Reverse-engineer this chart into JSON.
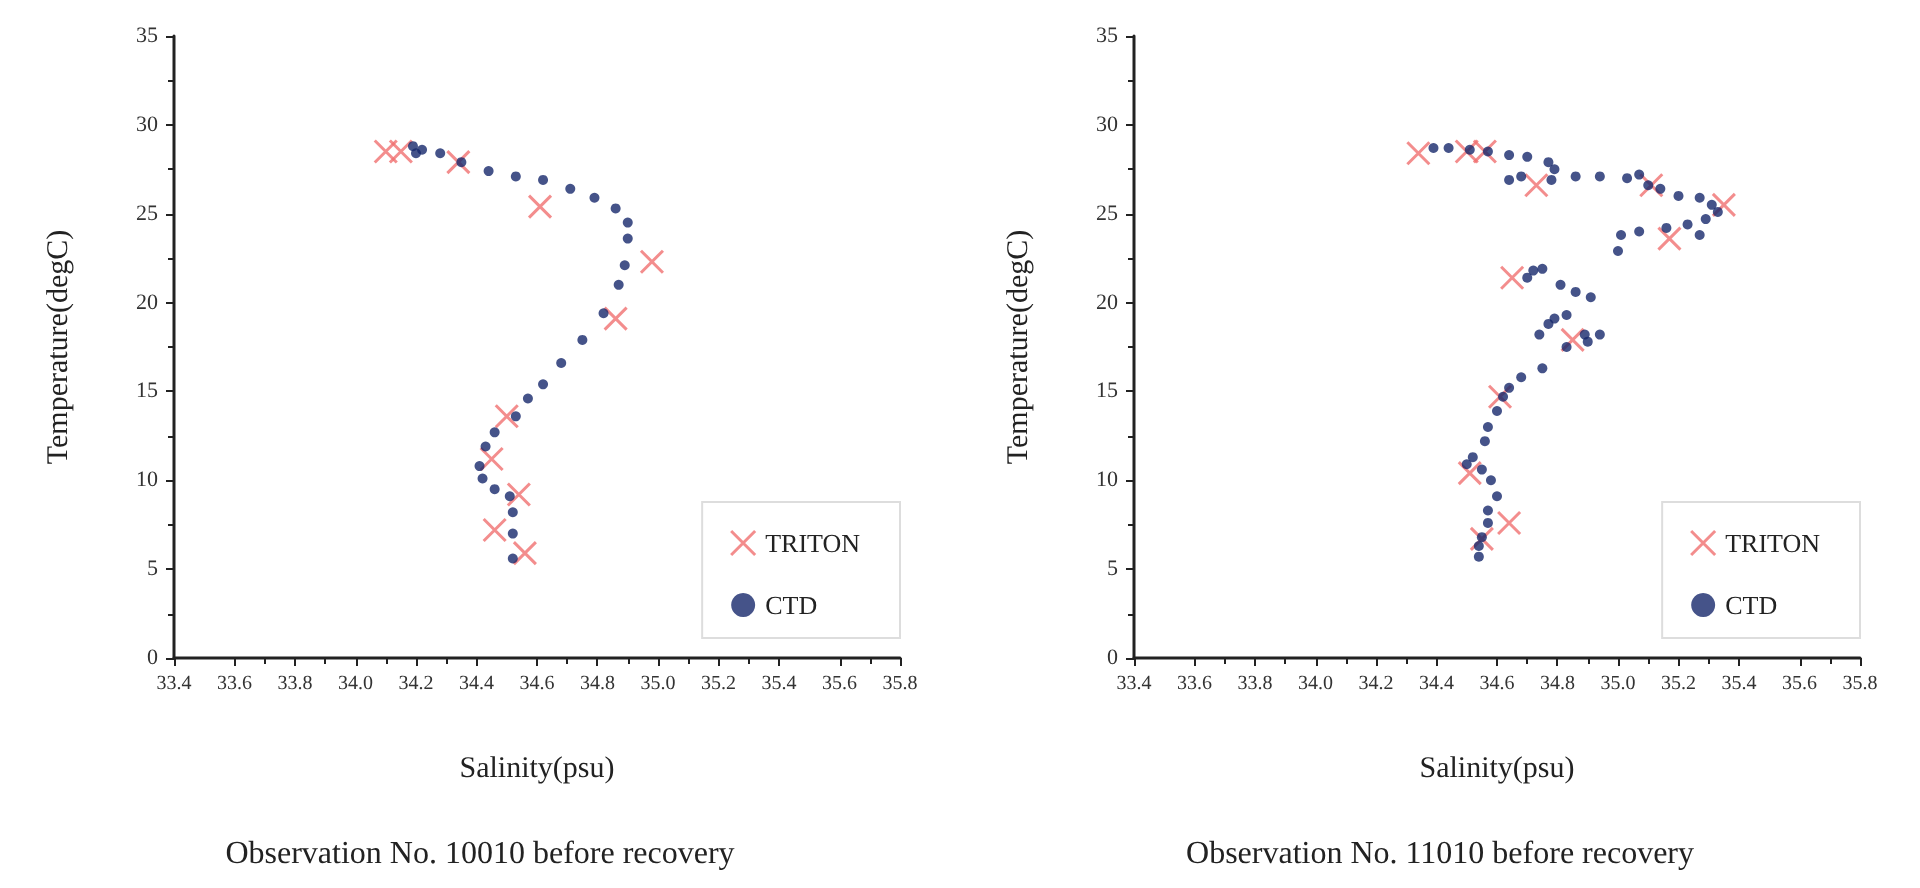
{
  "chart_data": [
    {
      "type": "scatter",
      "title": "Observation No. 10010 before recovery",
      "xlabel": "Salinity(psu)",
      "ylabel": "Temperature(degC)",
      "xlim": [
        33.4,
        35.8
      ],
      "xticks": [
        {
          "value": 33.4,
          "label": "33.4"
        },
        {
          "value": 33.6,
          "label": "33.6"
        },
        {
          "value": 33.8,
          "label": "33.8"
        },
        {
          "value": 34.0,
          "label": "34.0"
        },
        {
          "value": 34.2,
          "label": "34.2"
        },
        {
          "value": 34.4,
          "label": "34.4"
        },
        {
          "value": 34.6,
          "label": "34.6"
        },
        {
          "value": 34.8,
          "label": "34.8"
        },
        {
          "value": 35.0,
          "label": "35.0"
        },
        {
          "value": 35.2,
          "label": "35.2"
        },
        {
          "value": 35.4,
          "label": "35.4"
        },
        {
          "value": 35.6,
          "label": "35.6"
        },
        {
          "value": 35.8,
          "label": "35.8"
        }
      ],
      "ylim": [
        0,
        35
      ],
      "yticks": [
        0,
        5,
        10,
        15,
        20,
        25,
        30,
        35
      ],
      "grid": false,
      "legend": "bottom right",
      "series": [
        {
          "name": "TRITON",
          "color": "#f07070",
          "marker": "cross",
          "x": [
            34.1,
            34.15,
            34.34,
            34.61,
            34.98,
            34.86,
            34.5,
            34.45,
            34.54,
            34.46,
            34.56
          ],
          "values": [
            28.5,
            28.5,
            27.9,
            25.4,
            22.3,
            19.1,
            13.6,
            11.2,
            9.2,
            7.2,
            5.9
          ]
        },
        {
          "name": "CTD",
          "color": "#17286b",
          "marker": "circle",
          "x": [
            34.19,
            34.2,
            34.22,
            34.28,
            34.35,
            34.44,
            34.53,
            34.62,
            34.71,
            34.79,
            34.86,
            34.9,
            34.9,
            34.89,
            34.87,
            34.82,
            34.75,
            34.68,
            34.62,
            34.57,
            34.53,
            34.46,
            34.43,
            34.41,
            34.42,
            34.46,
            34.51,
            34.52,
            34.52,
            34.52
          ],
          "values": [
            28.8,
            28.4,
            28.6,
            28.4,
            27.9,
            27.4,
            27.1,
            26.9,
            26.4,
            25.9,
            25.3,
            24.5,
            23.6,
            22.1,
            21.0,
            19.4,
            17.9,
            16.6,
            15.4,
            14.6,
            13.6,
            12.7,
            11.9,
            10.8,
            10.1,
            9.5,
            9.1,
            8.2,
            7.0,
            5.6
          ]
        }
      ]
    },
    {
      "type": "scatter",
      "title": "Observation No. 11010 before recovery",
      "xlabel": "Salinity(psu)",
      "ylabel": "Temperature(degC)",
      "xlim": [
        33.4,
        35.8
      ],
      "xticks": [
        {
          "value": 33.4,
          "label": "33.4"
        },
        {
          "value": 33.6,
          "label": "33.6"
        },
        {
          "value": 33.8,
          "label": "33.8"
        },
        {
          "value": 34.0,
          "label": "34.0"
        },
        {
          "value": 34.2,
          "label": "34.2"
        },
        {
          "value": 34.4,
          "label": "34.4"
        },
        {
          "value": 34.6,
          "label": "34.6"
        },
        {
          "value": 34.8,
          "label": "34.8"
        },
        {
          "value": 35.0,
          "label": "35.0"
        },
        {
          "value": 35.2,
          "label": "35.2"
        },
        {
          "value": 35.4,
          "label": "35.4"
        },
        {
          "value": 35.6,
          "label": "35.6"
        },
        {
          "value": 35.8,
          "label": "35.8"
        }
      ],
      "ylim": [
        0,
        35
      ],
      "yticks": [
        0,
        5,
        10,
        15,
        20,
        25,
        30,
        35
      ],
      "grid": false,
      "legend": "bottom right",
      "series": [
        {
          "name": "TRITON",
          "color": "#f07070",
          "marker": "cross",
          "x": [
            34.34,
            34.5,
            34.56,
            34.73,
            35.11,
            35.35,
            35.17,
            34.65,
            34.85,
            34.61,
            34.51,
            34.55,
            34.64
          ],
          "values": [
            28.4,
            28.5,
            28.5,
            26.6,
            26.6,
            25.5,
            23.6,
            21.4,
            17.9,
            14.7,
            10.4,
            6.7,
            7.6
          ]
        },
        {
          "name": "CTD",
          "color": "#17286b",
          "marker": "circle",
          "x": [
            34.39,
            34.44,
            34.51,
            34.57,
            34.64,
            34.7,
            34.77,
            34.79,
            34.64,
            34.68,
            34.78,
            34.86,
            34.94,
            35.03,
            35.07,
            35.1,
            35.14,
            35.2,
            35.27,
            35.31,
            35.33,
            35.29,
            35.23,
            35.16,
            35.07,
            35.01,
            35.0,
            35.27,
            34.72,
            34.75,
            34.7,
            34.81,
            34.86,
            34.91,
            34.83,
            34.77,
            34.74,
            34.79,
            34.89,
            34.94,
            34.9,
            34.83,
            34.75,
            34.68,
            34.64,
            34.62,
            34.6,
            34.57,
            34.56,
            34.52,
            34.5,
            34.55,
            34.58,
            34.6,
            34.57,
            34.57,
            34.55,
            34.54,
            34.54
          ],
          "values": [
            28.7,
            28.7,
            28.6,
            28.5,
            28.3,
            28.2,
            27.9,
            27.5,
            26.9,
            27.1,
            26.9,
            27.1,
            27.1,
            27.0,
            27.2,
            26.6,
            26.4,
            26.0,
            25.9,
            25.5,
            25.1,
            24.7,
            24.4,
            24.2,
            24.0,
            23.8,
            22.9,
            23.8,
            21.8,
            21.9,
            21.4,
            21.0,
            20.6,
            20.3,
            19.3,
            18.8,
            18.2,
            19.1,
            18.2,
            18.2,
            17.8,
            17.5,
            16.3,
            15.8,
            15.2,
            14.7,
            13.9,
            13.0,
            12.2,
            11.3,
            10.9,
            10.6,
            10.0,
            9.1,
            8.3,
            7.6,
            6.8,
            6.3,
            5.7
          ]
        }
      ]
    }
  ]
}
